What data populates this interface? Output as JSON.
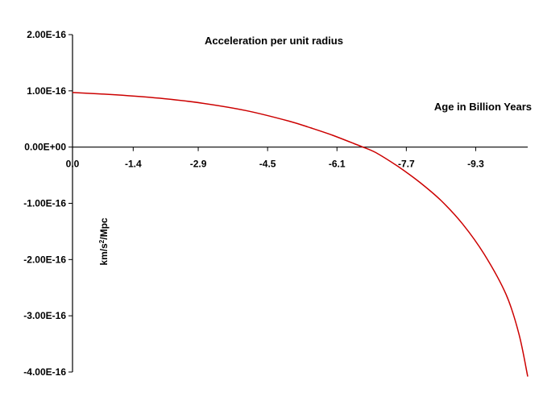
{
  "chart_data": {
    "type": "line",
    "title": "Acceleration per unit radius",
    "xlabel": "Age in Billion Years",
    "ylabel": "km/s² /Mpc",
    "ylabel_parts": {
      "pre": "km/s",
      "sup": "2",
      "post": "/Mpc"
    },
    "xlim": [
      0,
      10.5
    ],
    "ylim": [
      -4e-16,
      2e-16
    ],
    "x_tick_values": [
      0,
      1.4,
      2.9,
      4.5,
      6.1,
      7.7,
      9.3
    ],
    "x_tick_labels": [
      "0.0",
      "-1.4",
      "-2.9",
      "-4.5",
      "-6.1",
      "-7.7",
      "-9.3"
    ],
    "y_tick_values": [
      2e-16,
      1e-16,
      0,
      -1e-16,
      -2e-16,
      -3e-16,
      -4e-16
    ],
    "y_tick_labels": [
      "2.00E-16",
      "1.00E-16",
      "0.00E+00",
      "-1.00E-16",
      "-2.00E-16",
      "-3.00E-16",
      "-4.00E-16"
    ],
    "grid": false,
    "legend": "none",
    "series": [
      {
        "color": "#cc0000",
        "x": [
          0,
          1.0,
          2.0,
          3.0,
          4.0,
          5.0,
          5.5,
          6.0,
          6.5,
          6.7,
          7.0,
          7.5,
          8.0,
          8.5,
          9.0,
          9.5,
          10.0,
          10.3,
          10.5
        ],
        "y": [
          9.7e-17,
          9.3e-17,
          8.7e-17,
          7.8e-17,
          6.5e-17,
          4.6e-17,
          3.4e-17,
          2.1e-17,
          6e-18,
          0,
          -1e-17,
          -3.4e-17,
          -6.2e-17,
          -9.5e-17,
          -1.37e-16,
          -1.91e-16,
          -2.62e-16,
          -3.33e-16,
          -4.08e-16
        ]
      }
    ]
  }
}
